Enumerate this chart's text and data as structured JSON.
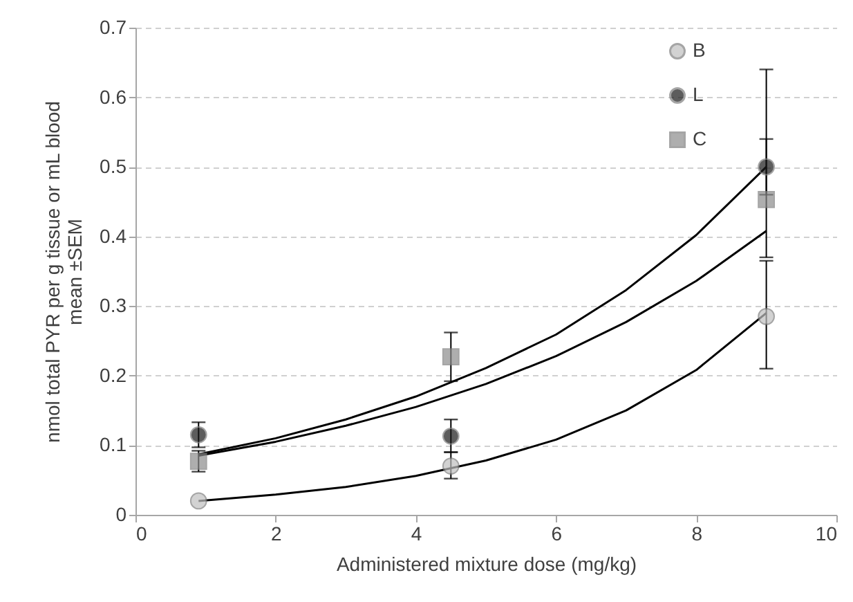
{
  "chart_data": {
    "type": "scatter",
    "xlabel": "Administered mixture dose (mg/kg)",
    "ylabel": "nmol total PYR per g tissue or mL blood mean ±SEM",
    "xlim": [
      0,
      10
    ],
    "xticks": [
      0,
      2,
      4,
      6,
      8,
      10
    ],
    "ylim": [
      0,
      0.7
    ],
    "yticks": [
      0,
      0.1,
      0.2,
      0.3,
      0.4,
      0.5,
      0.6,
      0.7
    ],
    "grid": "y",
    "legend": "top right",
    "series": [
      {
        "name": "B",
        "color": "#c0c0c0",
        "marker": "circle",
        "x": [
          0.9,
          4.5,
          9
        ],
        "values": [
          0.02,
          0.07,
          0.285
        ],
        "errors": [
          null,
          [
            0.052,
            0.09
          ],
          [
            0.21,
            0.365
          ]
        ]
      },
      {
        "name": "L",
        "color": "#1a1a1a",
        "marker": "circle",
        "x": [
          0.9,
          4.5,
          9
        ],
        "values": [
          0.115,
          0.113,
          0.5
        ],
        "errors": [
          [
            0.097,
            0.133
          ],
          [
            0.09,
            0.137
          ],
          [
            0.46,
            0.54
          ]
        ]
      },
      {
        "name": "C",
        "color": "#8c8c8c",
        "marker": "square",
        "x": [
          0.9,
          4.5,
          9
        ],
        "values": [
          0.077,
          0.227,
          0.453
        ],
        "errors": [
          [
            0.062,
            0.092
          ],
          [
            0.192,
            0.262
          ],
          [
            0.37,
            0.64
          ]
        ]
      },
      {
        "type": "line",
        "color": "#000000",
        "marker": "none",
        "x": [
          0.9,
          2,
          3,
          4,
          5,
          6,
          7,
          8,
          9
        ],
        "values": [
          0.02,
          0.029,
          0.04,
          0.056,
          0.078,
          0.108,
          0.15,
          0.208,
          0.29
        ]
      },
      {
        "type": "line",
        "color": "#000000",
        "marker": "none",
        "x": [
          0.9,
          2,
          3,
          4,
          5,
          6,
          7,
          8,
          9
        ],
        "values": [
          0.087,
          0.11,
          0.137,
          0.17,
          0.211,
          0.259,
          0.323,
          0.402,
          0.5
        ]
      },
      {
        "type": "line",
        "color": "#000000",
        "marker": "none",
        "x": [
          0.9,
          2,
          3,
          4,
          5,
          6,
          7,
          8,
          9
        ],
        "values": [
          0.085,
          0.105,
          0.128,
          0.155,
          0.188,
          0.228,
          0.277,
          0.336,
          0.408
        ]
      }
    ]
  }
}
